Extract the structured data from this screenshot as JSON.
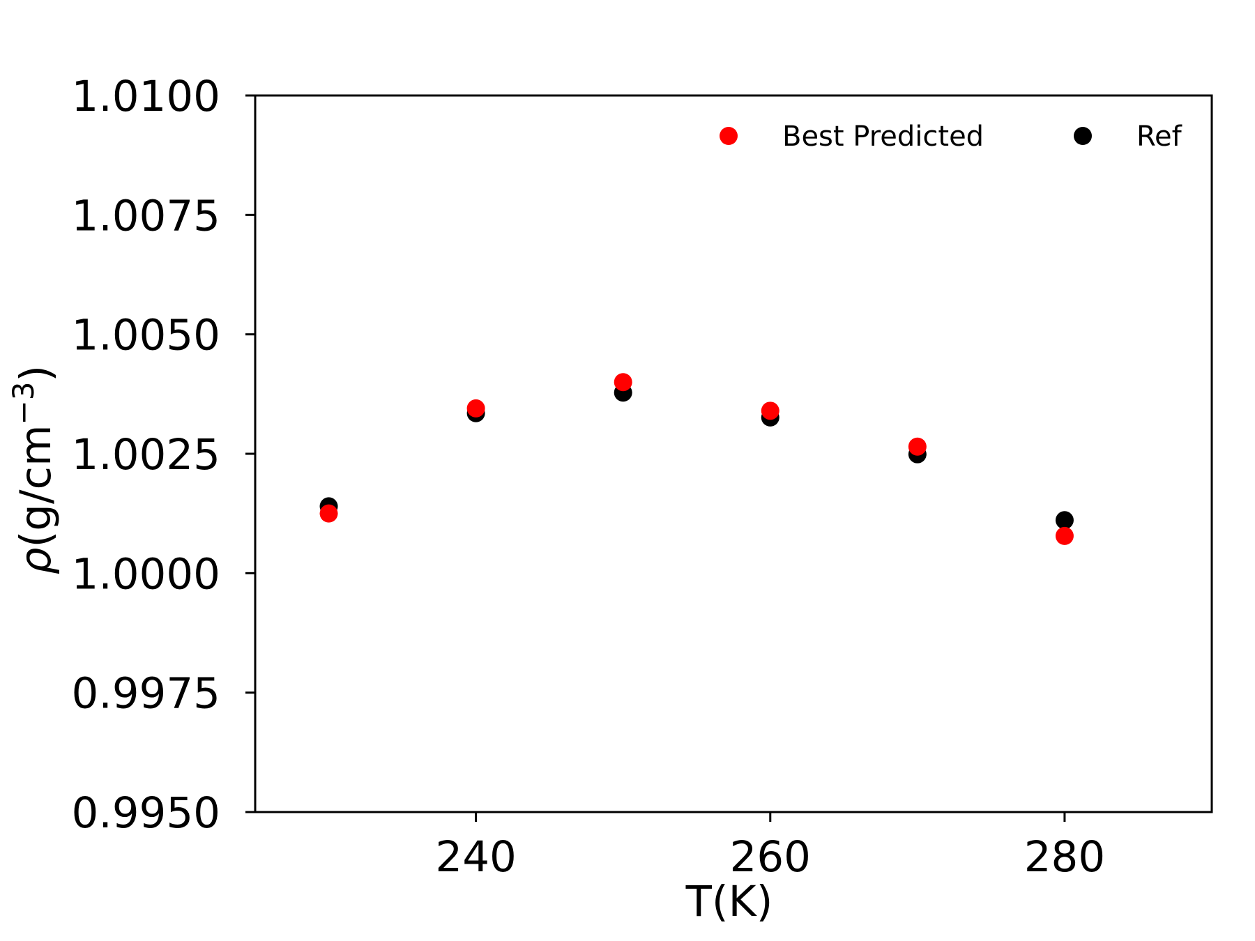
{
  "chart_data": {
    "type": "scatter",
    "title": "",
    "xlabel": "T(K)",
    "ylabel_prefix": "ρ",
    "ylabel_main": "(g/cm",
    "ylabel_sup": "−3",
    "ylabel_suffix": ")",
    "xlim": [
      225,
      290
    ],
    "ylim": [
      0.995,
      1.01
    ],
    "xticks": [
      240,
      260,
      280
    ],
    "xtick_labels": [
      "240",
      "260",
      "280"
    ],
    "yticks": [
      0.995,
      0.9975,
      1.0,
      1.0025,
      1.005,
      1.0075,
      1.01
    ],
    "ytick_labels": [
      "0.9950",
      "0.9975",
      "1.0000",
      "1.0025",
      "1.0050",
      "1.0075",
      "1.0100"
    ],
    "grid": false,
    "legend_position": "top-right",
    "series": [
      {
        "name": "Best Predicted",
        "color": "#ff0000",
        "x": [
          230,
          240,
          250,
          260,
          270,
          280
        ],
        "y": [
          1.00125,
          1.00345,
          1.004,
          1.0034,
          1.00265,
          1.00078
        ]
      },
      {
        "name": "Ref",
        "color": "#000000",
        "x": [
          230,
          240,
          250,
          260,
          270,
          280
        ],
        "y": [
          1.0014,
          1.00335,
          1.00378,
          1.00326,
          1.00249,
          1.00111
        ]
      }
    ]
  }
}
